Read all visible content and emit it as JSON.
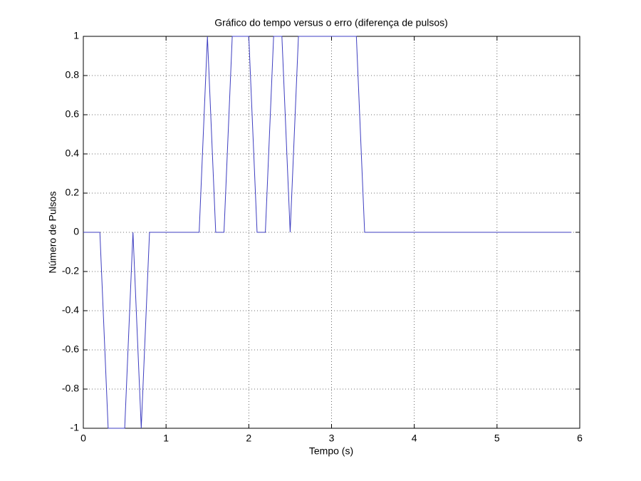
{
  "chart_data": {
    "type": "line",
    "title": "Gráfico do tempo versus o erro (diferença de pulsos)",
    "x_label": "Tempo (s)",
    "y_label": "Número de Pulsos",
    "x": [
      0,
      0.1,
      0.2,
      0.3,
      0.4,
      0.5,
      0.6,
      0.7,
      0.8,
      0.9,
      1.0,
      1.1,
      1.2,
      1.3,
      1.4,
      1.5,
      1.6,
      1.7,
      1.8,
      1.9,
      2.0,
      2.1,
      2.2,
      2.3,
      2.4,
      2.5,
      2.6,
      2.7,
      2.8,
      2.9,
      3.0,
      3.1,
      3.2,
      3.3,
      3.4,
      3.5,
      3.6,
      3.7,
      3.8,
      3.9,
      4.0,
      4.1,
      4.2,
      4.3,
      4.4,
      4.5,
      4.6,
      4.7,
      4.8,
      4.9,
      5.0,
      5.1,
      5.2,
      5.3,
      5.4,
      5.5,
      5.6,
      5.7,
      5.8,
      5.9
    ],
    "series": [
      {
        "color": "#3d3dc0",
        "values": [
          0,
          0,
          0,
          -1,
          -1,
          -1,
          0,
          -1,
          0,
          0,
          0,
          0,
          0,
          0,
          0,
          1,
          0,
          0,
          1,
          1,
          1,
          0,
          0,
          1,
          1,
          0,
          1,
          1,
          1,
          1,
          1,
          1,
          1,
          1,
          0,
          0,
          0,
          0,
          0,
          0,
          0,
          0,
          0,
          0,
          0,
          0,
          0,
          0,
          0,
          0,
          0,
          0,
          0,
          0,
          0,
          0,
          0,
          0,
          0,
          0
        ]
      }
    ],
    "xlim": [
      0,
      6
    ],
    "xticks": [
      0,
      1,
      2,
      3,
      4,
      5,
      6
    ],
    "ylim": [
      -1,
      1
    ],
    "yticks": [
      -1,
      -0.8,
      -0.6,
      -0.4,
      -0.2,
      0,
      0.2,
      0.4,
      0.6,
      0.8,
      1
    ],
    "grid": true
  }
}
